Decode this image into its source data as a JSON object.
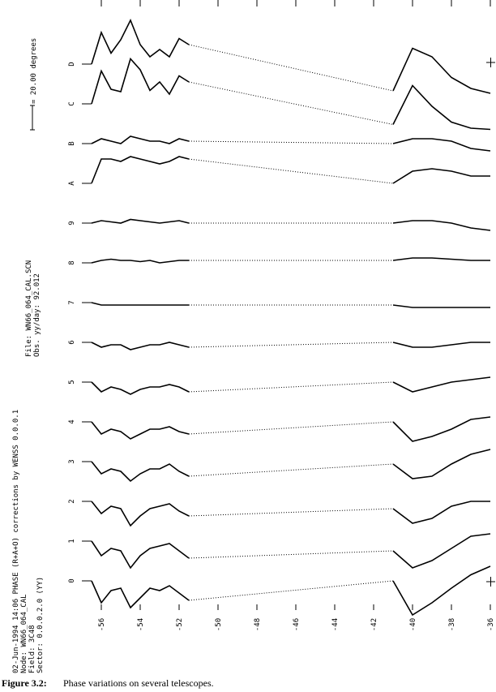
{
  "chart_data": {
    "type": "line",
    "header": [
      "02-Jun-1994 14:06  PHASE (R+A+O) corrections by WENSS 0.0.0.1",
      "Node:   WN66_064_CAL",
      "Field:  3C48",
      "Sector: 0.0.0.2.0 (YY)"
    ],
    "file_info": [
      "File: WN66_064_CAL.SCN",
      "Obs. yy/day: 92.012"
    ],
    "scale": {
      "value": 20,
      "label": "= 20.00 degrees"
    },
    "xlim": [
      -57,
      -36
    ],
    "xticks": [
      -56,
      -54,
      -52,
      -50,
      -48,
      -46,
      -44,
      -42,
      -40,
      -38,
      -36
    ],
    "x": [
      -56.5,
      -56,
      -55.5,
      -55,
      -54.5,
      -54,
      -53.5,
      -53,
      -52.5,
      -52,
      -51.5,
      -46,
      -41,
      -40,
      -39,
      -38,
      -37,
      -36
    ],
    "series": [
      {
        "name": "0",
        "color": "#000000",
        "values": [
          0,
          -18,
          -8,
          -6,
          -22,
          -14,
          -6,
          -8,
          -4,
          -10,
          -16,
          null,
          0,
          -28,
          -18,
          -6,
          5,
          12
        ]
      },
      {
        "name": "1",
        "color": "#000000",
        "values": [
          0,
          -12,
          -6,
          -8,
          -22,
          -12,
          -6,
          -4,
          -2,
          -8,
          -14,
          null,
          -8,
          -22,
          -16,
          -6,
          4,
          6
        ]
      },
      {
        "name": "2",
        "color": "#000000",
        "values": [
          0,
          -10,
          -4,
          -6,
          -20,
          -12,
          -6,
          -4,
          -2,
          -8,
          -12,
          null,
          -6,
          -18,
          -14,
          -4,
          0,
          0
        ]
      },
      {
        "name": "3",
        "color": "#000000",
        "values": [
          0,
          -10,
          -6,
          -8,
          -16,
          -10,
          -6,
          -6,
          -2,
          -8,
          -12,
          null,
          -2,
          -14,
          -12,
          -2,
          6,
          10
        ]
      },
      {
        "name": "4",
        "color": "#000000",
        "values": [
          0,
          -10,
          -6,
          -8,
          -14,
          -10,
          -6,
          -6,
          -4,
          -8,
          -10,
          null,
          0,
          -16,
          -12,
          -6,
          2,
          4
        ]
      },
      {
        "name": "5",
        "color": "#000000",
        "values": [
          0,
          -8,
          -4,
          -6,
          -10,
          -6,
          -4,
          -4,
          -2,
          -4,
          -8,
          null,
          0,
          -8,
          -4,
          0,
          2,
          4
        ]
      },
      {
        "name": "6",
        "color": "#000000",
        "values": [
          0,
          -4,
          -2,
          -2,
          -6,
          -4,
          -2,
          -2,
          0,
          -2,
          -4,
          null,
          0,
          -4,
          -4,
          -2,
          0,
          0
        ]
      },
      {
        "name": "7",
        "color": "#000000",
        "values": [
          0,
          -2,
          -2,
          -2,
          -2,
          -2,
          -2,
          -2,
          -2,
          -2,
          -2,
          null,
          -2,
          -4,
          -4,
          -4,
          -4,
          -4
        ]
      },
      {
        "name": "8",
        "color": "#000000",
        "values": [
          0,
          2,
          3,
          2,
          2,
          1,
          2,
          0,
          1,
          2,
          2,
          null,
          2,
          4,
          4,
          3,
          2,
          2
        ]
      },
      {
        "name": "9",
        "color": "#000000",
        "values": [
          0,
          2,
          1,
          0,
          3,
          2,
          1,
          0,
          1,
          2,
          0,
          null,
          0,
          2,
          2,
          0,
          -4,
          -6
        ]
      },
      {
        "name": "A",
        "color": "#000000",
        "values": [
          0,
          20,
          20,
          18,
          22,
          20,
          18,
          16,
          18,
          22,
          20,
          null,
          0,
          10,
          12,
          10,
          6,
          6
        ]
      },
      {
        "name": "B",
        "color": "#000000",
        "values": [
          0,
          4,
          2,
          0,
          6,
          4,
          2,
          2,
          0,
          4,
          2,
          null,
          0,
          4,
          4,
          2,
          -4,
          -6
        ]
      },
      {
        "name": "C",
        "color": "#000000",
        "values": [
          0,
          27,
          12,
          10,
          37,
          28,
          11,
          18,
          8,
          23,
          18,
          null,
          -17,
          15,
          -2,
          -15,
          -20,
          -21
        ]
      },
      {
        "name": "D",
        "color": "#000000",
        "values": [
          0,
          26,
          9,
          20,
          36,
          16,
          6,
          12,
          6,
          21,
          16,
          null,
          -22,
          13,
          6,
          -11,
          -20,
          -24
        ]
      }
    ],
    "caption": {
      "label": "Figure 3.2:",
      "text": "Phase variations on several telescopes."
    }
  }
}
